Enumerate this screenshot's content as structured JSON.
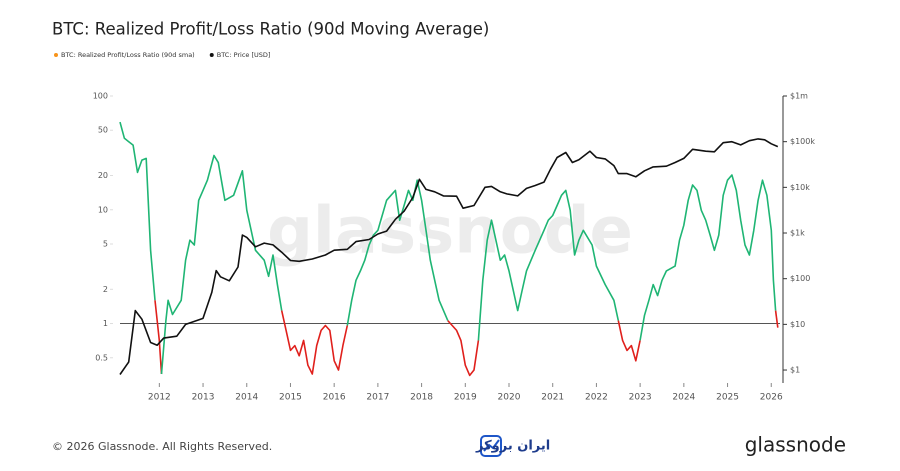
{
  "chart_data": {
    "type": "line",
    "title": "BTC: Realized Profit/Loss Ratio (90d Moving Average)",
    "watermark": "glassnode",
    "footer": "© 2026 Glassnode. All Rights Reserved.",
    "partner_logo": "ایران بروکر",
    "brand": "glassnode",
    "log_y": true,
    "log_y2": true,
    "xlim": [
      2011.1,
      2026.2
    ],
    "xticks": [
      2012,
      2013,
      2014,
      2015,
      2016,
      2017,
      2018,
      2019,
      2020,
      2021,
      2022,
      2023,
      2024,
      2025,
      2026
    ],
    "ylim": [
      0.3,
      100
    ],
    "yticks": [
      0.5,
      1,
      2,
      5,
      10,
      20,
      50,
      100
    ],
    "y2lim": [
      0.52,
      1000000
    ],
    "y2ticks": [
      {
        "value": 1,
        "label": "$1"
      },
      {
        "value": 10,
        "label": "$10"
      },
      {
        "value": 100,
        "label": "$100"
      },
      {
        "value": 1000,
        "label": "$1k"
      },
      {
        "value": 10000,
        "label": "$10k"
      },
      {
        "value": 100000,
        "label": "$100k"
      },
      {
        "value": 1000000,
        "label": "$1m"
      }
    ],
    "reference_line": 1,
    "series": [
      {
        "name": "BTC: Realized Profit/Loss Ratio (90d sma)",
        "color": "#f7931a",
        "above_color": "#1fb574",
        "below_color": "#e0201c",
        "axis": "y",
        "x": [
          2011.1,
          2011.2,
          2011.4,
          2011.5,
          2011.6,
          2011.7,
          2011.8,
          2011.9,
          2012.0,
          2012.05,
          2012.15,
          2012.2,
          2012.3,
          2012.5,
          2012.6,
          2012.7,
          2012.8,
          2012.9,
          2013.0,
          2013.1,
          2013.25,
          2013.35,
          2013.5,
          2013.7,
          2013.9,
          2014.0,
          2014.2,
          2014.4,
          2014.5,
          2014.6,
          2014.7,
          2014.8,
          2014.9,
          2015.0,
          2015.1,
          2015.2,
          2015.3,
          2015.4,
          2015.5,
          2015.6,
          2015.7,
          2015.8,
          2015.9,
          2016.0,
          2016.1,
          2016.2,
          2016.3,
          2016.4,
          2016.5,
          2016.6,
          2016.7,
          2016.8,
          2016.9,
          2017.0,
          2017.2,
          2017.3,
          2017.4,
          2017.5,
          2017.6,
          2017.7,
          2017.8,
          2017.9,
          2018.0,
          2018.1,
          2018.2,
          2018.4,
          2018.6,
          2018.8,
          2018.9,
          2019.0,
          2019.1,
          2019.2,
          2019.3,
          2019.4,
          2019.5,
          2019.6,
          2019.7,
          2019.8,
          2019.9,
          2020.0,
          2020.2,
          2020.3,
          2020.4,
          2020.6,
          2020.8,
          2020.9,
          2021.0,
          2021.1,
          2021.2,
          2021.3,
          2021.4,
          2021.5,
          2021.6,
          2021.7,
          2021.9,
          2022.0,
          2022.2,
          2022.4,
          2022.5,
          2022.6,
          2022.7,
          2022.8,
          2022.9,
          2023.0,
          2023.1,
          2023.2,
          2023.3,
          2023.4,
          2023.5,
          2023.6,
          2023.8,
          2023.9,
          2024.0,
          2024.1,
          2024.2,
          2024.3,
          2024.4,
          2024.5,
          2024.6,
          2024.7,
          2024.8,
          2024.9,
          2025.0,
          2025.1,
          2025.2,
          2025.3,
          2025.4,
          2025.5,
          2025.6,
          2025.7,
          2025.8,
          2025.9,
          2026.0,
          2026.05,
          2026.1,
          2026.15
        ],
        "values": [
          59,
          42.5,
          37,
          21.3,
          27.3,
          28.3,
          4.4,
          1.6,
          0.71,
          0.36,
          1.06,
          1.6,
          1.2,
          1.6,
          3.6,
          5.4,
          4.9,
          12.1,
          14.8,
          18.2,
          30,
          26,
          12.1,
          13.4,
          22,
          9.9,
          4.4,
          3.6,
          2.6,
          4.0,
          2.2,
          1.3,
          0.87,
          0.58,
          0.64,
          0.52,
          0.71,
          0.43,
          0.36,
          0.64,
          0.87,
          0.96,
          0.87,
          0.47,
          0.39,
          0.64,
          0.96,
          1.6,
          2.4,
          2.9,
          3.6,
          4.9,
          6.0,
          6.6,
          12.1,
          13.4,
          14.8,
          8.1,
          10.9,
          14.8,
          12.1,
          18.2,
          12.1,
          6.6,
          3.6,
          1.6,
          1.06,
          0.87,
          0.71,
          0.43,
          0.35,
          0.39,
          0.71,
          2.4,
          5.4,
          8.1,
          5.4,
          3.6,
          4.0,
          2.9,
          1.3,
          1.95,
          2.9,
          4.4,
          6.6,
          8.1,
          8.9,
          10.9,
          13.4,
          14.8,
          9.9,
          4.0,
          5.4,
          6.6,
          4.9,
          3.2,
          2.2,
          1.6,
          1.06,
          0.71,
          0.58,
          0.64,
          0.47,
          0.71,
          1.18,
          1.6,
          2.2,
          1.76,
          2.4,
          2.9,
          3.2,
          5.4,
          7.3,
          12.1,
          16.5,
          14.8,
          9.9,
          8.1,
          6.0,
          4.4,
          6.0,
          13.4,
          18.2,
          20.2,
          14.8,
          8.1,
          4.9,
          4.0,
          6.6,
          12.1,
          18.2,
          13.4,
          6.6,
          2.4,
          1.3,
          0.92
        ]
      },
      {
        "name": "BTC: Price [USD]",
        "color": "#111111",
        "axis": "y2",
        "x": [
          2011.1,
          2011.3,
          2011.45,
          2011.6,
          2011.8,
          2011.95,
          2012.1,
          2012.4,
          2012.6,
          2012.9,
          2013.0,
          2013.2,
          2013.3,
          2013.4,
          2013.6,
          2013.8,
          2013.9,
          2014.0,
          2014.2,
          2014.4,
          2014.6,
          2014.8,
          2015.0,
          2015.2,
          2015.5,
          2015.8,
          2016.0,
          2016.3,
          2016.5,
          2016.8,
          2017.0,
          2017.2,
          2017.4,
          2017.6,
          2017.8,
          2017.95,
          2018.1,
          2018.3,
          2018.5,
          2018.8,
          2018.95,
          2019.2,
          2019.45,
          2019.6,
          2019.8,
          2019.95,
          2020.2,
          2020.4,
          2020.6,
          2020.8,
          2020.95,
          2021.1,
          2021.3,
          2021.45,
          2021.6,
          2021.85,
          2022.0,
          2022.2,
          2022.4,
          2022.5,
          2022.7,
          2022.9,
          2023.1,
          2023.3,
          2023.6,
          2023.8,
          2024.0,
          2024.2,
          2024.5,
          2024.7,
          2024.9,
          2025.1,
          2025.3,
          2025.5,
          2025.7,
          2025.85,
          2026.0,
          2026.15
        ],
        "values": [
          0.8,
          1.5,
          20,
          13,
          4,
          3.5,
          5,
          5.5,
          10,
          12.5,
          13.5,
          50,
          150,
          110,
          90,
          180,
          900,
          800,
          500,
          600,
          550,
          380,
          250,
          240,
          270,
          330,
          420,
          440,
          650,
          720,
          950,
          1100,
          2000,
          3000,
          6000,
          15000,
          9000,
          8000,
          6500,
          6400,
          3500,
          4000,
          10000,
          10500,
          8000,
          7200,
          6500,
          9500,
          11000,
          13000,
          25000,
          45000,
          58000,
          35000,
          40000,
          62000,
          45000,
          42000,
          30000,
          20000,
          20000,
          17000,
          23000,
          28000,
          29000,
          35000,
          43000,
          68000,
          62000,
          60000,
          95000,
          100000,
          85000,
          105000,
          115000,
          110000,
          90000,
          78000
        ]
      }
    ]
  }
}
